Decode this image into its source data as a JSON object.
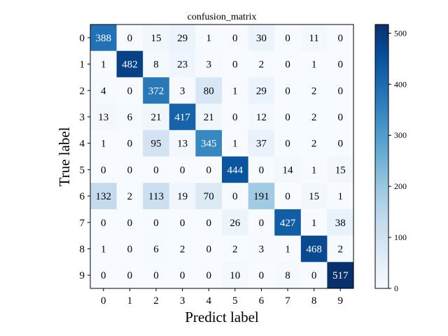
{
  "chart_data": {
    "type": "heatmap",
    "title": "confusion_matrix",
    "xlabel": "Predict label",
    "ylabel": "True label",
    "x_categories": [
      "0",
      "1",
      "2",
      "3",
      "4",
      "5",
      "6",
      "7",
      "8",
      "9"
    ],
    "y_categories": [
      "0",
      "1",
      "2",
      "3",
      "4",
      "5",
      "6",
      "7",
      "8",
      "9"
    ],
    "matrix": [
      [
        388,
        0,
        15,
        29,
        1,
        0,
        30,
        0,
        11,
        0
      ],
      [
        1,
        482,
        8,
        23,
        3,
        0,
        2,
        0,
        1,
        0
      ],
      [
        4,
        0,
        372,
        3,
        80,
        1,
        29,
        0,
        2,
        0
      ],
      [
        13,
        6,
        21,
        417,
        21,
        0,
        12,
        0,
        2,
        0
      ],
      [
        1,
        0,
        95,
        13,
        345,
        1,
        37,
        0,
        2,
        0
      ],
      [
        0,
        0,
        0,
        0,
        0,
        444,
        0,
        14,
        1,
        15
      ],
      [
        132,
        2,
        113,
        19,
        70,
        0,
        191,
        0,
        15,
        1
      ],
      [
        0,
        0,
        0,
        0,
        0,
        26,
        0,
        427,
        1,
        38
      ],
      [
        1,
        0,
        6,
        2,
        0,
        2,
        3,
        1,
        468,
        2
      ],
      [
        0,
        0,
        0,
        0,
        0,
        10,
        0,
        8,
        0,
        517
      ]
    ],
    "colormap": "Blues",
    "vmin": 0,
    "vmax": 517,
    "colorbar_ticks": [
      0,
      100,
      200,
      300,
      400,
      500
    ],
    "colorbar_tick_labels": [
      "0",
      "100",
      "200",
      "300",
      "400",
      "500"
    ]
  }
}
